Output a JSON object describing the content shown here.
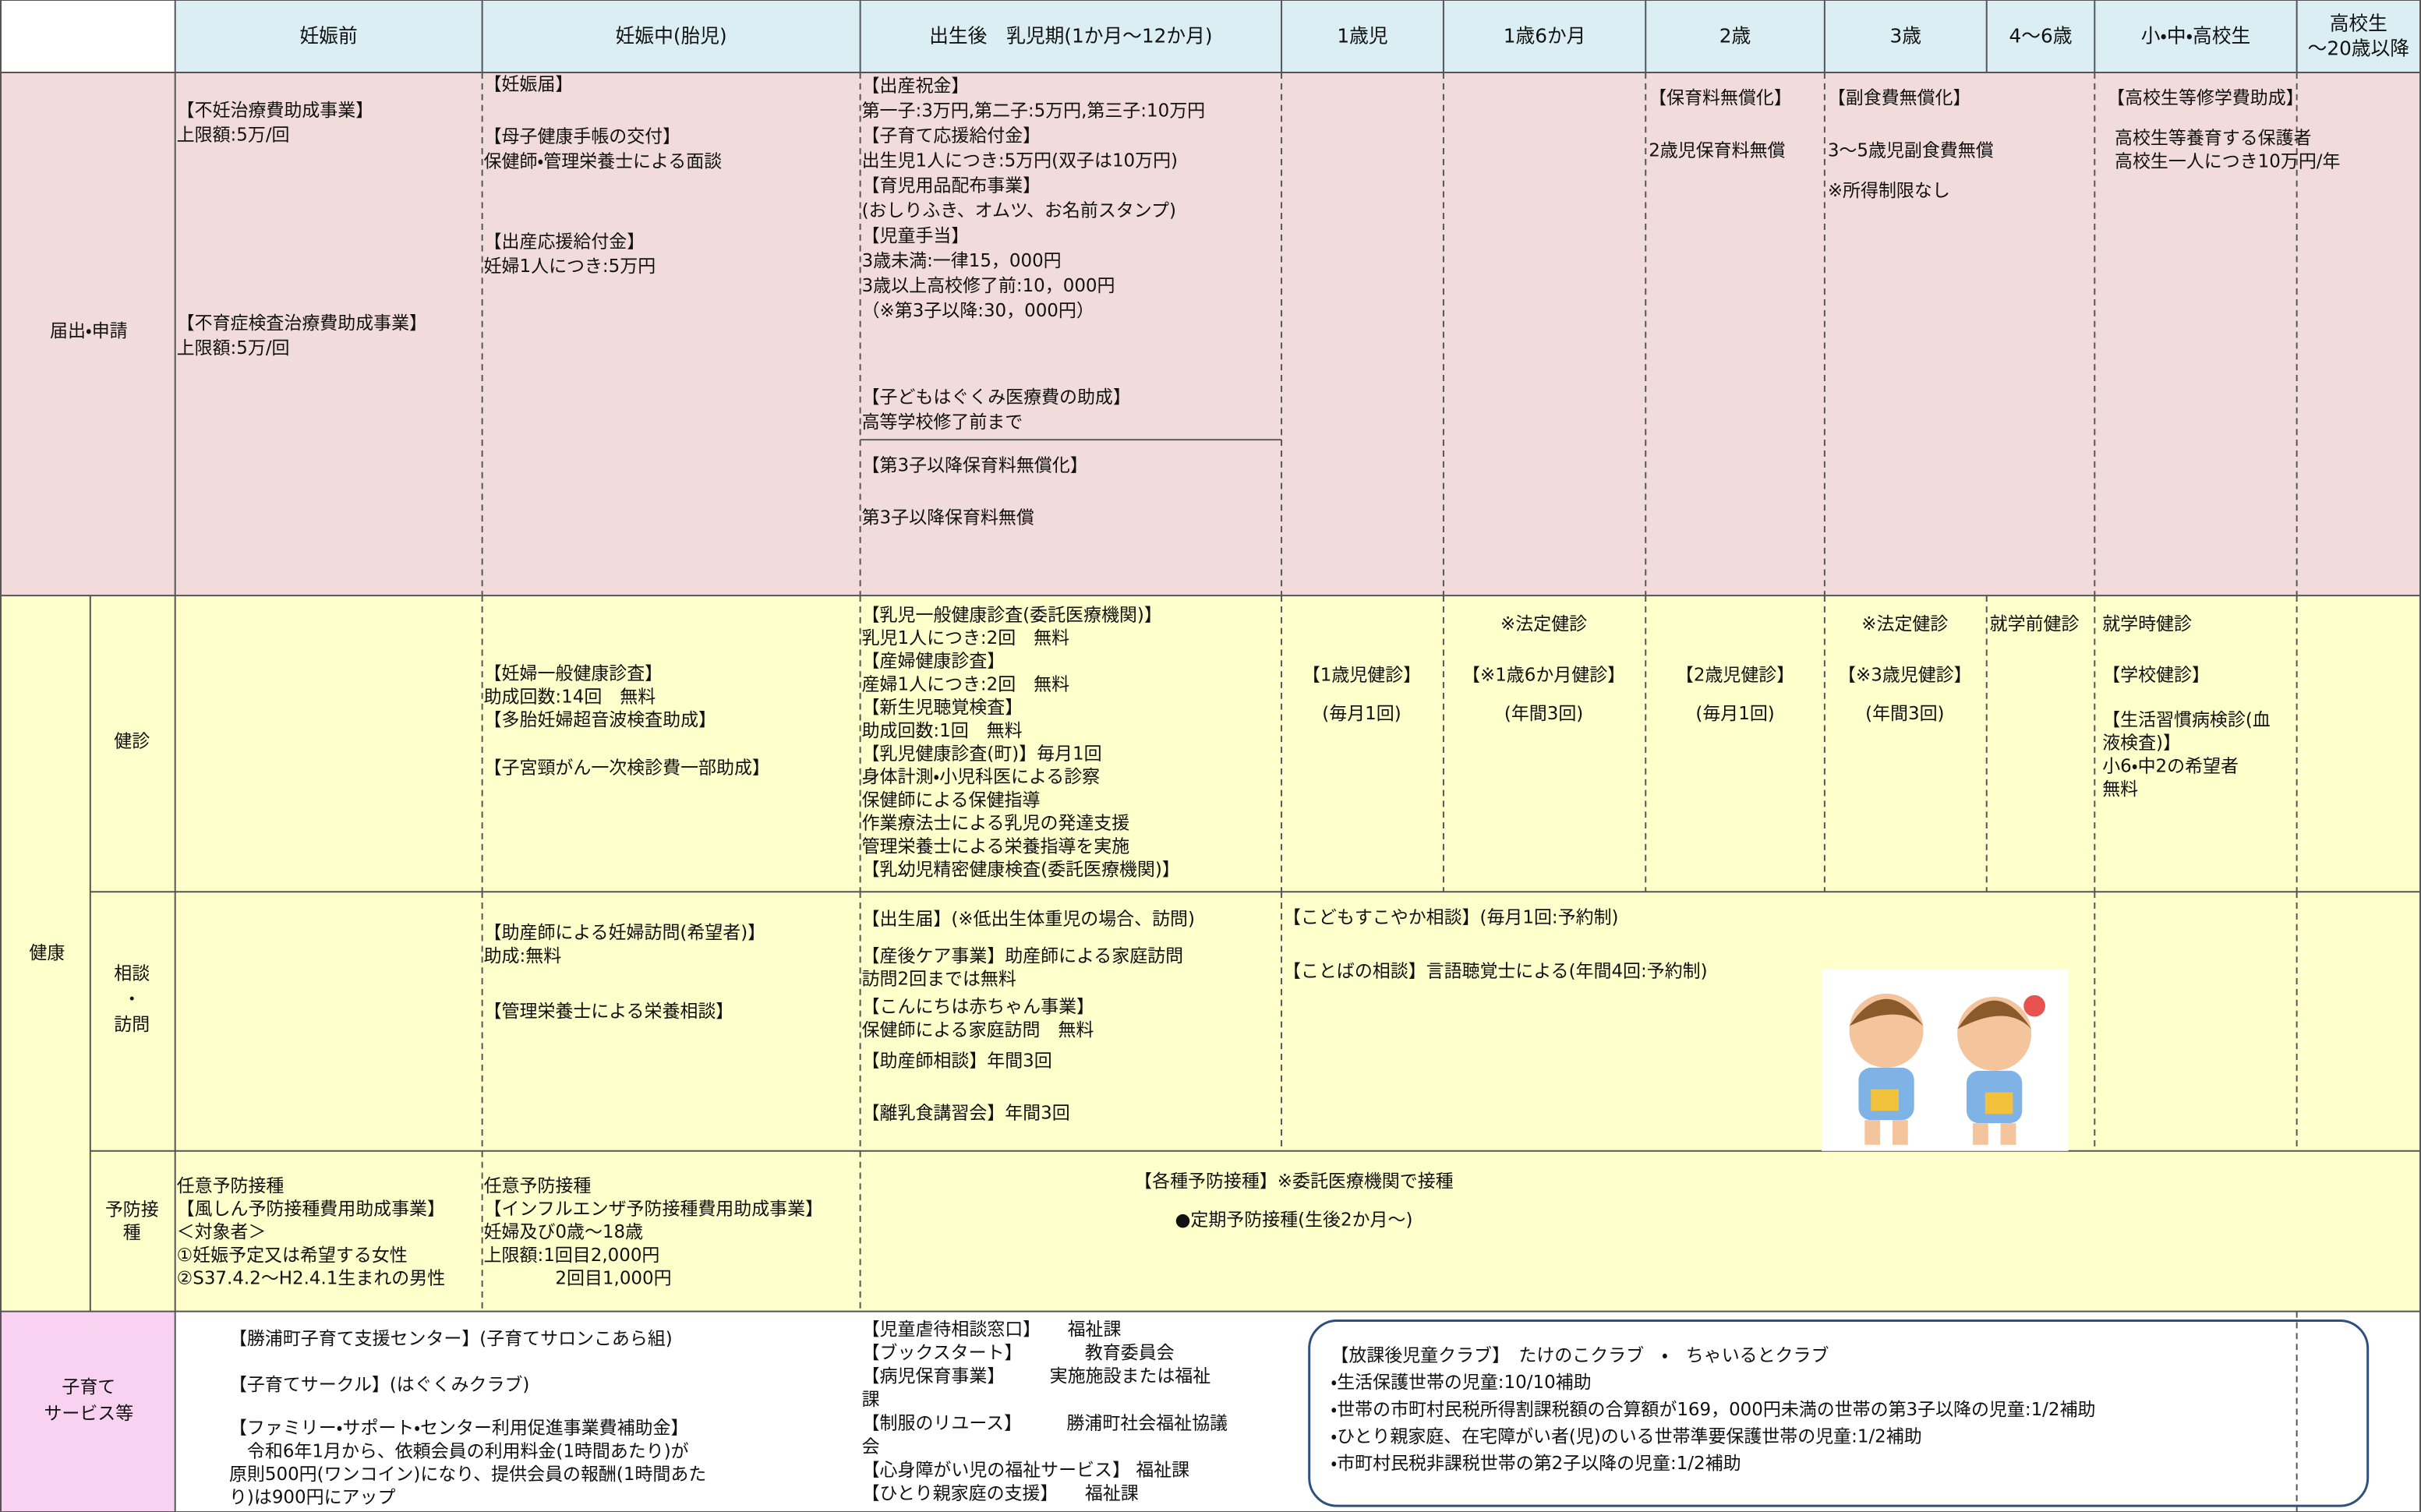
{
  "header": {
    "columns": [
      [
        "妊娠前"
      ],
      [
        "妊娠中(胎児)"
      ],
      [
        "出生後　乳児期(1か月～12か月)"
      ],
      [
        "1歳児"
      ],
      [
        "1歳6か月"
      ],
      [
        "2歳"
      ],
      [
        "3歳"
      ],
      [
        "4～6歳"
      ],
      [
        "小・中・高校生"
      ],
      [
        "高校生",
        "～20歳以降"
      ]
    ]
  },
  "health_label": "健康",
  "sections": [
    {
      "label": [
        "届出・申請"
      ],
      "blocks": [
        {
          "lines": [
            "【不妊治療費助成事業】",
            "上限額:5万/回"
          ]
        },
        {
          "lines": [
            "【不育症検査治療費助成事業】",
            "上限額:5万/回"
          ]
        },
        {
          "lines": [
            "【妊娠届】"
          ]
        },
        {
          "lines": [
            "【母子健康手帳の交付】",
            "保健師・管理栄養士による面談"
          ]
        },
        {
          "lines": [
            "【出産応援給付金】",
            "妊婦1人につき:5万円"
          ]
        },
        {
          "lines": [
            "【出産祝金】",
            "第一子:3万円,第二子:5万円,第三子:10万円",
            "【子育て応援給付金】",
            "出生児1人につき:5万円(双子は10万円)",
            "【育児用品配布事業】",
            "(おしりふき、オムツ、お名前スタンプ)",
            "【児童手当】",
            "3歳未満:一律15，000円",
            "3歳以上高校修了前:10，000円",
            "（※第3子以降:30，000円）"
          ]
        },
        {
          "lines": [
            "【子どもはぐくみ医療費の助成】",
            "高等学校修了前まで"
          ]
        },
        {
          "lines": [
            "【第3子以降保育料無償化】"
          ]
        },
        {
          "lines": [
            "第3子以降保育料無償"
          ]
        },
        {
          "lines": [
            "【保育料無償化】"
          ]
        },
        {
          "lines": [
            "2歳児保育料無償"
          ]
        },
        {
          "lines": [
            "【副食費無償化】"
          ]
        },
        {
          "lines": [
            "3～5歳児副食費無償"
          ]
        },
        {
          "lines": [
            "※所得制限なし"
          ]
        },
        {
          "lines": [
            "【高校生等修学費助成】"
          ]
        },
        {
          "lines": [
            "高校生等養育する保護者",
            "高校生一人につき10万円/年"
          ]
        }
      ]
    },
    {
      "label": [
        "健診"
      ],
      "blocks": [
        {
          "lines": [
            "【妊婦一般健康診査】",
            "助成回数:14回　無料",
            "【多胎妊婦超音波検査助成】"
          ]
        },
        {
          "lines": [
            "【子宮頸がん一次検診費一部助成】"
          ]
        },
        {
          "lines": [
            "【乳児一般健康診査(委託医療機関)】",
            "乳児1人につき:2回　無料",
            "【産婦健康診査】",
            "産婦1人につき:2回　無料",
            "【新生児聴覚検査】",
            "助成回数:1回　無料",
            "【乳児健康診査(町)】毎月1回",
            "身体計測・小児科医による診察",
            "保健師による保健指導",
            "作業療法士による乳児の発達支援",
            "管理栄養士による栄養指導を実施",
            "【乳幼児精密健康検査(委託医療機関)】"
          ]
        },
        {
          "lines": [
            "【1歳児健診】",
            "(毎月1回)"
          ]
        },
        {
          "lines": [
            "※法定健診"
          ]
        },
        {
          "lines": [
            "【※1歳6か月健診】",
            "(年間3回)"
          ]
        },
        {
          "lines": [
            "【2歳児健診】",
            "(毎月1回)"
          ]
        },
        {
          "lines": [
            "※法定健診"
          ]
        },
        {
          "lines": [
            "【※3歳児健診】",
            "(年間3回)"
          ]
        },
        {
          "lines": [
            "就学前健診"
          ]
        },
        {
          "lines": [
            "就学時健診"
          ]
        },
        {
          "lines": [
            "【学校健診】"
          ]
        },
        {
          "lines": [
            "【生活習慣病検診(血",
            "液検査)】",
            "小6・中2の希望者",
            "無料"
          ]
        }
      ]
    },
    {
      "label": [
        "相談",
        "・",
        "訪問"
      ],
      "blocks": [
        {
          "lines": [
            "【助産師による妊婦訪問(希望者)】",
            "助成:無料"
          ]
        },
        {
          "lines": [
            "【管理栄養士による栄養相談】"
          ]
        },
        {
          "lines": [
            "【出生届】(※低出生体重児の場合、訪問)"
          ]
        },
        {
          "lines": [
            "【産後ケア事業】助産師による家庭訪問",
            "訪問2回までは無料"
          ]
        },
        {
          "lines": [
            "【こんにちは赤ちゃん事業】",
            "保健師による家庭訪問　無料"
          ]
        },
        {
          "lines": [
            "【助産師相談】年間3回"
          ]
        },
        {
          "lines": [
            "【離乳食講習会】年間3回"
          ]
        },
        {
          "lines": [
            "【こどもすこやか相談】(毎月1回:予約制)"
          ]
        },
        {
          "lines": [
            "【ことばの相談】言語聴覚士による(年間4回:予約制)"
          ]
        }
      ]
    },
    {
      "label": [
        "予防接",
        "種"
      ],
      "blocks": [
        {
          "lines": [
            "任意予防接種",
            "【風しん予防接種費用助成事業】",
            "＜対象者＞",
            "①妊娠予定又は希望する女性",
            "②S37.4.2～H2.4.1生まれの男性"
          ]
        },
        {
          "lines": [
            "任意予防接種",
            "【インフルエンザ予防接種費用助成事業】",
            "妊婦及び0歳～18歳",
            "上限額:1回目2,000円",
            "　　　　2回目1,000円"
          ]
        },
        {
          "lines": [
            "【各種予防接種】※委託医療機関で接種"
          ]
        },
        {
          "lines": [
            "●定期予防接種(生後2か月～)"
          ]
        }
      ]
    },
    {
      "label": [
        "子育て",
        "サービス等"
      ],
      "blocks": [
        {
          "lines": [
            "【勝浦町子育て支援センター】(子育てサロンこあら組)"
          ]
        },
        {
          "lines": [
            "【子育てサークル】(はぐくみクラブ)"
          ]
        },
        {
          "lines": [
            "【ファミリー・サポート・センター利用促進事業費補助金】",
            "　令和6年1月から、依頼会員の利用料金(1時間あたり)が",
            "原則500円(ワンコイン)になり、提供会員の報酬(1時間あた",
            "り)は900円にアップ"
          ]
        },
        {
          "lines": [
            "【児童虐待相談窓口】　　福祉課",
            "【ブックスタート】　　　　教育委員会",
            "【病児保育事業】　　　実施施設または福祉",
            "課",
            "【制服のリユース】　　　勝浦町社会福祉協議",
            "会",
            "【心身障がい児の福祉サービス】 福祉課",
            "【ひとり親家庭の支援】　　福祉課"
          ]
        },
        {
          "lines": [
            "【放課後児童クラブ】　たけのこクラブ　・　ちゃいるとクラブ",
            "・生活保護世帯の児童:10/10補助",
            "・世帯の市町村民税所得割課税額の合算額が169，000円未満の世帯の第3子以降の児童:1/2補助",
            "・ひとり親家庭、在宅障がい者(児)のいる世帯準要保護世帯の児童:1/2補助",
            "・市町村民税非課税世帯の第2子以降の児童:1/2補助"
          ]
        }
      ]
    }
  ]
}
